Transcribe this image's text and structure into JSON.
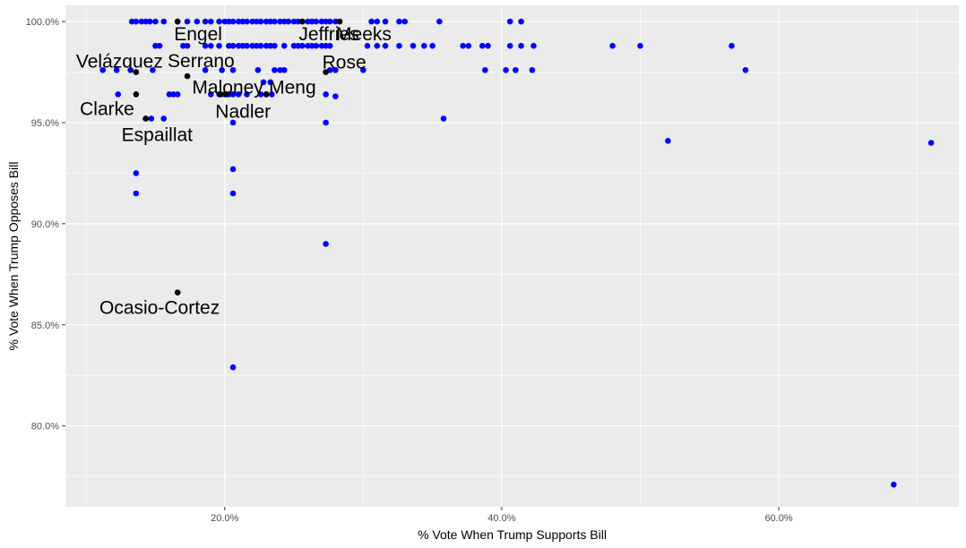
{
  "chart_data": {
    "type": "scatter",
    "title": "",
    "xlabel": "% Vote When Trump Supports Bill",
    "ylabel": "% Vote When Trump Opposes Bill",
    "xlim": [
      8.5,
      73.0
    ],
    "ylim": [
      76.0,
      100.8
    ],
    "x_ticks": [
      20,
      40,
      60
    ],
    "x_tick_labels": [
      "20.0%",
      "40.0%",
      "60.0%"
    ],
    "x_minor_ticks": [
      10,
      30,
      50,
      70
    ],
    "y_ticks": [
      80,
      85,
      90,
      95,
      100
    ],
    "y_tick_labels": [
      "80.0%",
      "85.0%",
      "90.0%",
      "95.0%",
      "100.0%"
    ],
    "y_minor_ticks": [
      77.5,
      82.5,
      87.5,
      92.5,
      97.5
    ],
    "grid": true,
    "background": "#EBEBEB",
    "series": [
      {
        "color": "#0000FF",
        "points": [
          [
            13.3,
            100
          ],
          [
            13.6,
            100
          ],
          [
            14.0,
            100
          ],
          [
            14.3,
            100
          ],
          [
            14.6,
            100
          ],
          [
            15.0,
            100
          ],
          [
            15.6,
            100
          ],
          [
            16.6,
            100
          ],
          [
            17.3,
            100
          ],
          [
            18.0,
            100
          ],
          [
            18.6,
            100
          ],
          [
            19.0,
            100
          ],
          [
            19.6,
            100
          ],
          [
            20.0,
            100
          ],
          [
            20.3,
            100
          ],
          [
            20.6,
            100
          ],
          [
            21.0,
            100
          ],
          [
            21.3,
            100
          ],
          [
            21.6,
            100
          ],
          [
            22.0,
            100
          ],
          [
            22.3,
            100
          ],
          [
            22.6,
            100
          ],
          [
            23.0,
            100
          ],
          [
            23.3,
            100
          ],
          [
            23.6,
            100
          ],
          [
            24.0,
            100
          ],
          [
            24.3,
            100
          ],
          [
            24.6,
            100
          ],
          [
            25.0,
            100
          ],
          [
            25.3,
            100
          ],
          [
            25.6,
            100
          ],
          [
            26.0,
            100
          ],
          [
            26.3,
            100
          ],
          [
            26.6,
            100
          ],
          [
            27.0,
            100
          ],
          [
            27.3,
            100
          ],
          [
            27.6,
            100
          ],
          [
            28.0,
            100
          ],
          [
            30.6,
            100
          ],
          [
            31.0,
            100
          ],
          [
            31.6,
            100
          ],
          [
            32.6,
            100
          ],
          [
            33.0,
            100
          ],
          [
            35.5,
            100
          ],
          [
            40.6,
            100
          ],
          [
            41.4,
            100
          ],
          [
            15.0,
            98.8
          ],
          [
            15.3,
            98.8
          ],
          [
            17.0,
            98.8
          ],
          [
            17.3,
            98.8
          ],
          [
            18.6,
            98.8
          ],
          [
            19.0,
            98.8
          ],
          [
            19.6,
            98.8
          ],
          [
            20.3,
            98.8
          ],
          [
            20.6,
            98.8
          ],
          [
            21.0,
            98.8
          ],
          [
            21.3,
            98.8
          ],
          [
            21.6,
            98.8
          ],
          [
            22.0,
            98.8
          ],
          [
            22.3,
            98.8
          ],
          [
            22.6,
            98.8
          ],
          [
            23.0,
            98.8
          ],
          [
            23.3,
            98.8
          ],
          [
            23.6,
            98.8
          ],
          [
            24.3,
            98.8
          ],
          [
            25.0,
            98.8
          ],
          [
            25.3,
            98.8
          ],
          [
            25.6,
            98.8
          ],
          [
            26.0,
            98.8
          ],
          [
            26.3,
            98.8
          ],
          [
            26.6,
            98.8
          ],
          [
            27.0,
            98.8
          ],
          [
            27.3,
            98.8
          ],
          [
            27.6,
            98.8
          ],
          [
            30.3,
            98.8
          ],
          [
            31.0,
            98.8
          ],
          [
            31.6,
            98.8
          ],
          [
            32.6,
            98.8
          ],
          [
            33.6,
            98.8
          ],
          [
            34.4,
            98.8
          ],
          [
            35.0,
            98.8
          ],
          [
            37.2,
            98.8
          ],
          [
            37.6,
            98.8
          ],
          [
            38.6,
            98.8
          ],
          [
            39.0,
            98.8
          ],
          [
            40.6,
            98.8
          ],
          [
            41.4,
            98.8
          ],
          [
            42.3,
            98.8
          ],
          [
            48.0,
            98.8
          ],
          [
            50.0,
            98.8
          ],
          [
            56.6,
            98.8
          ],
          [
            11.2,
            97.6
          ],
          [
            12.2,
            97.6
          ],
          [
            13.2,
            97.6
          ],
          [
            14.8,
            97.6
          ],
          [
            18.6,
            97.6
          ],
          [
            19.8,
            97.6
          ],
          [
            20.6,
            97.6
          ],
          [
            22.4,
            97.6
          ],
          [
            23.6,
            97.6
          ],
          [
            24.0,
            97.6
          ],
          [
            24.3,
            97.6
          ],
          [
            27.6,
            97.6
          ],
          [
            28.0,
            97.6
          ],
          [
            30.0,
            97.6
          ],
          [
            38.8,
            97.6
          ],
          [
            40.3,
            97.6
          ],
          [
            41.0,
            97.6
          ],
          [
            42.2,
            97.6
          ],
          [
            57.6,
            97.6
          ],
          [
            22.8,
            97.0
          ],
          [
            23.3,
            97.0
          ],
          [
            12.3,
            96.4
          ],
          [
            16.0,
            96.4
          ],
          [
            16.3,
            96.4
          ],
          [
            16.6,
            96.4
          ],
          [
            19.0,
            96.4
          ],
          [
            19.6,
            96.4
          ],
          [
            20.0,
            96.4
          ],
          [
            20.3,
            96.4
          ],
          [
            20.6,
            96.4
          ],
          [
            21.0,
            96.4
          ],
          [
            21.6,
            96.4
          ],
          [
            22.6,
            96.4
          ],
          [
            23.0,
            96.4
          ],
          [
            23.4,
            96.4
          ],
          [
            27.3,
            96.4
          ],
          [
            28.0,
            96.3
          ],
          [
            14.3,
            95.2
          ],
          [
            14.7,
            95.2
          ],
          [
            15.6,
            95.2
          ],
          [
            35.8,
            95.2
          ],
          [
            20.6,
            95.0
          ],
          [
            27.3,
            95.0
          ],
          [
            52.0,
            94.1
          ],
          [
            71.0,
            94.0
          ],
          [
            13.6,
            92.5
          ],
          [
            20.6,
            92.7
          ],
          [
            13.6,
            91.5
          ],
          [
            20.6,
            91.5
          ],
          [
            27.3,
            89.0
          ],
          [
            20.6,
            82.9
          ],
          [
            68.3,
            77.1
          ]
        ]
      },
      {
        "color": "#000000",
        "points": [
          [
            13.6,
            97.5
          ],
          [
            17.3,
            97.3
          ],
          [
            13.6,
            96.4
          ],
          [
            19.7,
            96.4
          ],
          [
            20.1,
            96.4
          ],
          [
            23.0,
            96.4
          ],
          [
            14.3,
            95.2
          ],
          [
            16.6,
            86.6
          ],
          [
            27.3,
            97.5
          ],
          [
            28.3,
            100
          ],
          [
            16.6,
            100
          ],
          [
            25.6,
            100
          ]
        ]
      }
    ],
    "labels": [
      {
        "text": "Engel",
        "x": 16.6,
        "y": 100,
        "pos": "below-right"
      },
      {
        "text": "Jeffries",
        "x": 25.6,
        "y": 100,
        "pos": "below-right"
      },
      {
        "text": "Meeks",
        "x": 28.3,
        "y": 100,
        "pos": "below-right"
      },
      {
        "text": "Velázquez",
        "x": 13.6,
        "y": 97.5,
        "pos": "above-left"
      },
      {
        "text": "Serrano",
        "x": 17.3,
        "y": 97.3,
        "pos": "above-right"
      },
      {
        "text": "Rose",
        "x": 27.3,
        "y": 97.5,
        "pos": "above-right"
      },
      {
        "text": "Maloney",
        "x": 19.7,
        "y": 96.4,
        "pos": "above"
      },
      {
        "text": "Meng",
        "x": 23.0,
        "y": 96.4,
        "pos": "above-right"
      },
      {
        "text": "Clarke",
        "x": 13.6,
        "y": 96.4,
        "pos": "below-left"
      },
      {
        "text": "Nadler",
        "x": 20.1,
        "y": 96.4,
        "pos": "below-right"
      },
      {
        "text": "Espaillat",
        "x": 14.3,
        "y": 95.2,
        "pos": "below-right"
      },
      {
        "text": "Ocasio-Cortez",
        "x": 16.6,
        "y": 86.6,
        "pos": "below-left"
      }
    ]
  }
}
